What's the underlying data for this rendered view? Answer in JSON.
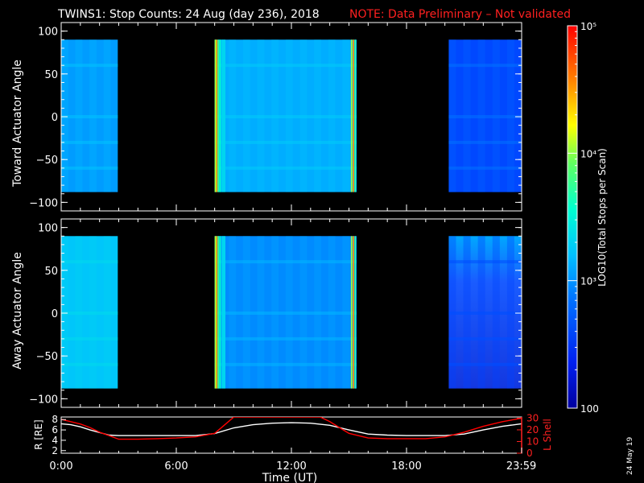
{
  "title": "TWINS1: Stop Counts: 24 Aug (day 236), 2018",
  "note": "NOTE: Data Preliminary – Not validated",
  "datestamp": "24 May 19",
  "colorbar": {
    "label": "LOG10(Total Stops per Scan)",
    "scale": "log",
    "range": [
      100,
      100000
    ],
    "tick_labels": [
      "100",
      "10³",
      "10⁴",
      "10⁵"
    ],
    "colors": [
      "#0000a0",
      "#0030ff",
      "#00c0ff",
      "#00ffd0",
      "#60ff60",
      "#ffff00",
      "#ff8000",
      "#ff0000"
    ]
  },
  "time_axis": {
    "label": "Time (UT)",
    "range_hours": [
      0,
      24
    ],
    "tick_labels": [
      "0:00",
      "6:00",
      "12:00",
      "18:00",
      "23:59"
    ],
    "tick_hours": [
      0,
      6,
      12,
      18,
      23.983
    ]
  },
  "chart_data": [
    {
      "type": "heatmap",
      "panel": "toward",
      "ylabel": "Toward Actuator Angle",
      "ylim": [
        -110,
        110
      ],
      "y_tick_labels": [
        "100",
        "50",
        "0",
        "−50",
        "−100"
      ],
      "y_ticks": [
        100,
        50,
        0,
        -50,
        -100
      ],
      "angle_range": [
        -88,
        90
      ],
      "x_units": "hours UT",
      "segments": [
        {
          "start": 0.0,
          "end": 2.95,
          "typical_log_counts": 2.75,
          "style": "uniform"
        },
        {
          "start": 8.0,
          "end": 15.4,
          "typical_log_counts": 2.8,
          "edge_high": true,
          "style": "edges"
        },
        {
          "start": 20.2,
          "end": 24.0,
          "typical_log_counts": 2.5,
          "style": "uniform"
        }
      ]
    },
    {
      "type": "heatmap",
      "panel": "away",
      "ylabel": "Away Actuator Angle",
      "ylim": [
        -110,
        110
      ],
      "y_tick_labels": [
        "100",
        "50",
        "0",
        "−50",
        "−100"
      ],
      "y_ticks": [
        100,
        50,
        0,
        -50,
        -100
      ],
      "angle_range": [
        -88,
        90
      ],
      "x_units": "hours UT",
      "segments": [
        {
          "start": 0.0,
          "end": 2.95,
          "typical_log_counts": 2.9,
          "style": "uniform"
        },
        {
          "start": 8.0,
          "end": 15.4,
          "typical_log_counts": 2.7,
          "edge_high": true,
          "style": "edges"
        },
        {
          "start": 20.2,
          "end": 24.0,
          "typical_log_counts": 2.4,
          "style": "gradient"
        }
      ]
    },
    {
      "type": "line",
      "panel": "ephemeris",
      "ylabel_left": "R [RE]",
      "ylabel_right": "L Shell",
      "y_left_tick_labels": [
        "2",
        "4",
        "6",
        "8"
      ],
      "y_left_ticks": [
        2,
        4,
        6,
        8
      ],
      "y_left_lim": [
        1.5,
        8.5
      ],
      "y_right_tick_labels": [
        "0",
        "10",
        "20",
        "30"
      ],
      "y_right_ticks": [
        0,
        10,
        20,
        30
      ],
      "y_right_lim": [
        0,
        31
      ],
      "series": [
        {
          "name": "R",
          "axis": "left",
          "color": "#ffffff",
          "x": [
            0,
            0.5,
            1,
            1.5,
            2,
            2.5,
            3,
            4,
            5,
            6,
            7,
            8,
            9,
            10,
            11,
            12,
            13,
            14,
            15,
            16,
            17,
            18,
            19,
            20,
            21,
            22,
            23,
            24
          ],
          "y": [
            7.2,
            7.0,
            6.6,
            6.0,
            5.5,
            5.0,
            4.9,
            4.9,
            4.9,
            4.9,
            4.9,
            5.3,
            6.4,
            7.0,
            7.3,
            7.4,
            7.3,
            6.9,
            6.0,
            5.2,
            5.0,
            4.9,
            4.9,
            4.9,
            5.2,
            6.0,
            6.7,
            7.2
          ]
        },
        {
          "name": "L Shell",
          "axis": "right",
          "color": "#ff0000",
          "x": [
            0,
            0.5,
            1,
            1.5,
            2,
            2.5,
            3,
            4,
            5,
            6,
            7,
            8,
            8.5,
            9,
            9.5,
            13,
            13.5,
            14,
            14.5,
            15,
            16,
            17,
            18,
            19,
            20,
            21,
            22,
            23,
            24
          ],
          "y": [
            29,
            27,
            25,
            22,
            18,
            15,
            12,
            12,
            12.5,
            13,
            14,
            17,
            24,
            31,
            31,
            31,
            31,
            27,
            22,
            17,
            13,
            12.5,
            12.5,
            12.5,
            14,
            18,
            23,
            27,
            30
          ]
        }
      ]
    }
  ]
}
